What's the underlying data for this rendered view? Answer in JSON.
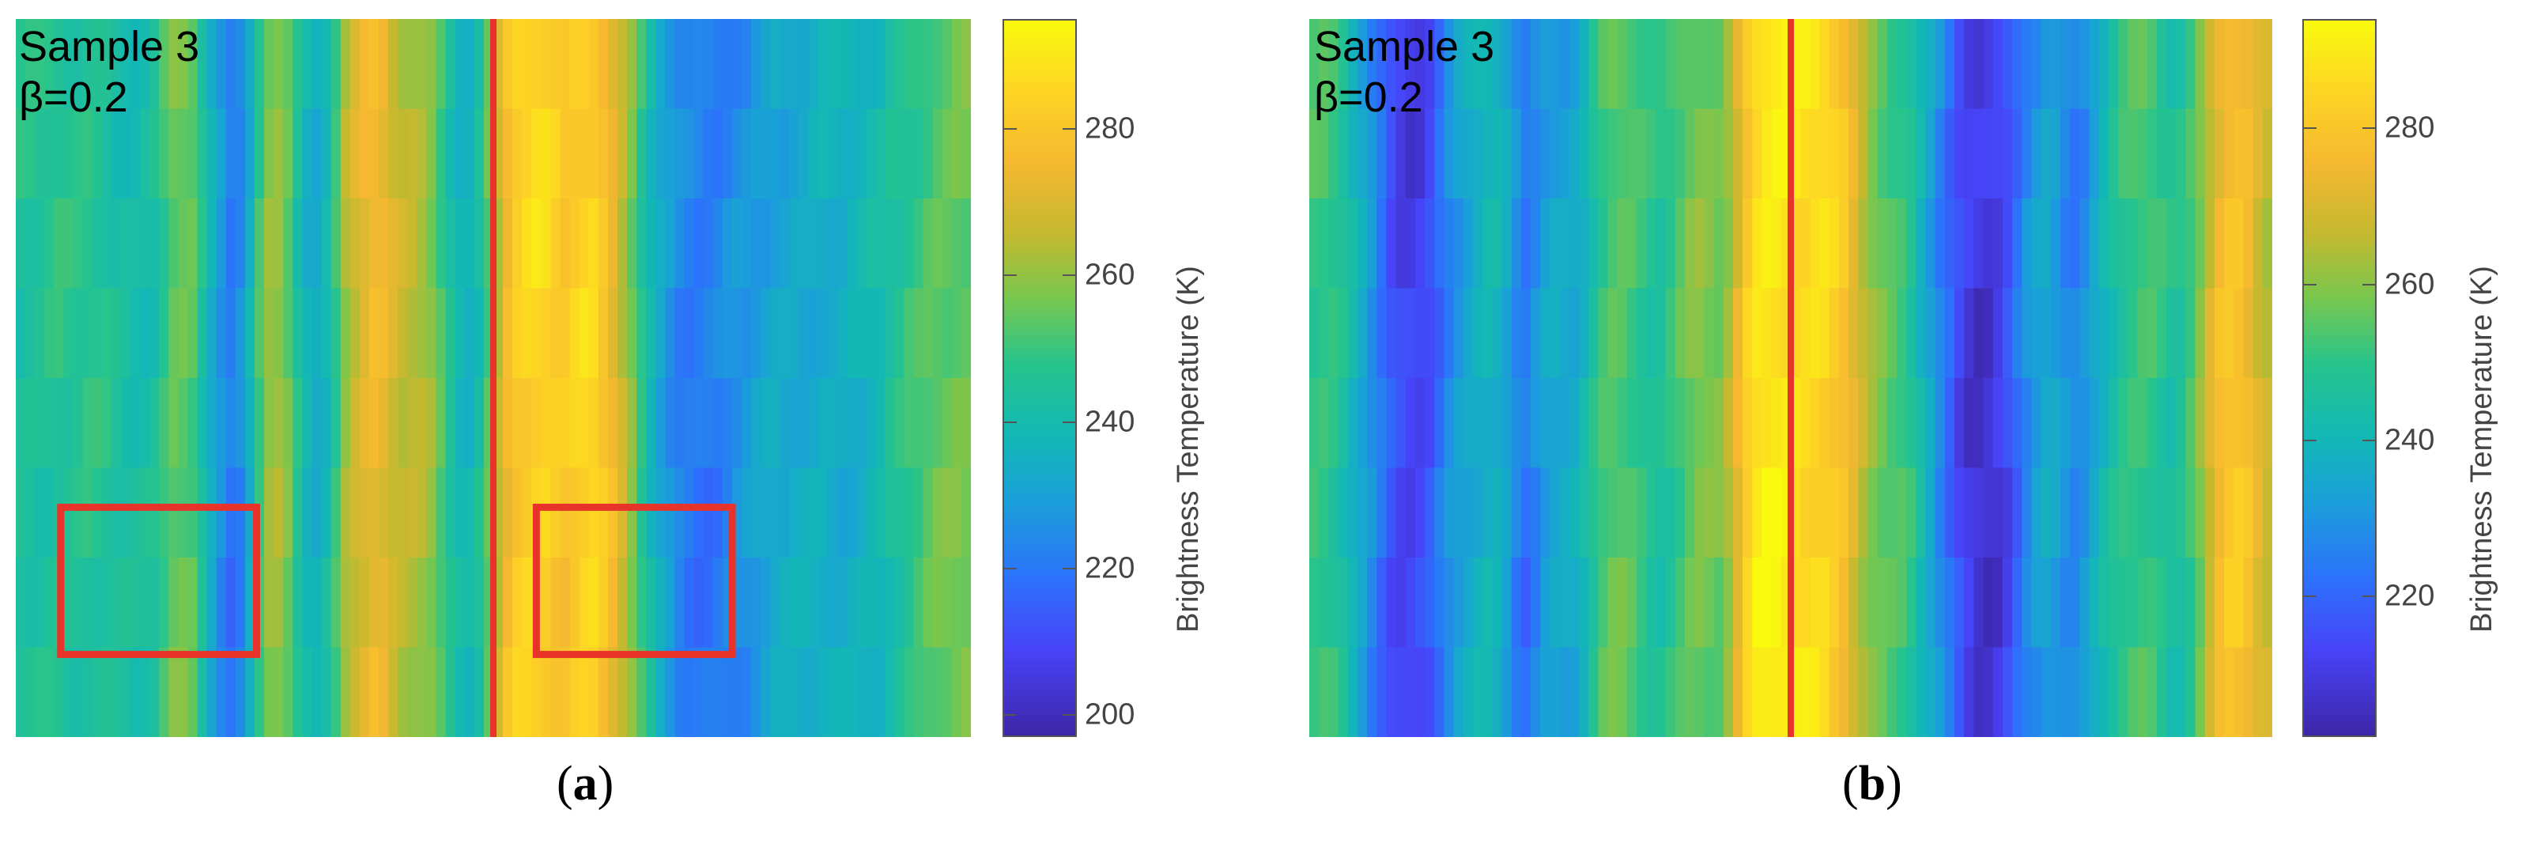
{
  "figure": {
    "colors": {
      "parula": [
        "#3e26a8",
        "#4743f8",
        "#2c72fb",
        "#1aa0d8",
        "#13b8b5",
        "#27c48c",
        "#76c74f",
        "#c3b92f",
        "#f5b830",
        "#fdd424",
        "#f9fb0e"
      ],
      "marker": "#e8332a"
    },
    "panels": [
      {
        "id": "a",
        "caption": "a",
        "caption_open": "(",
        "caption_close": ")",
        "sample_label": "Sample 3",
        "beta_label": "β=0.2",
        "chart_data": {
          "type": "heatmap",
          "colormap": "parula",
          "colorbar": {
            "title": "Brightness Temperature (K)",
            "range": [
              197,
              295
            ],
            "ticks": [
              200,
              220,
              240,
              260,
              280
            ]
          },
          "columns": [
            243,
            243,
            243,
            244,
            245,
            244,
            244,
            245,
            244,
            243,
            241,
            240,
            239,
            240,
            242,
            248,
            254,
            254,
            252,
            242,
            232,
            224,
            218,
            221,
            232,
            248,
            259,
            260,
            254,
            243,
            235,
            232,
            237,
            248,
            262,
            268,
            272,
            275,
            273,
            268,
            265,
            264,
            262,
            258,
            250,
            242,
            236,
            235,
            241,
            252,
            266,
            277,
            283,
            285,
            286,
            285,
            282,
            280,
            283,
            285,
            285,
            280,
            274,
            266,
            257,
            246,
            237,
            230,
            225,
            221,
            219,
            218,
            218,
            219,
            221,
            223,
            224,
            226,
            228,
            230,
            230,
            231,
            231,
            232,
            233,
            232,
            232,
            233,
            234,
            236,
            237,
            241,
            243,
            246,
            248,
            251,
            253,
            254,
            255,
            255
          ],
          "annotations": [
            "red vertical line at horizontal center",
            "red box at lower left of each half"
          ]
        }
      },
      {
        "id": "b",
        "caption": "b",
        "caption_open": "(",
        "caption_close": ")",
        "sample_label": "Sample 3",
        "beta_label": "β=0.2",
        "chart_data": {
          "type": "heatmap",
          "colormap": "parula",
          "colorbar": {
            "title": "Brightness Temperature (K)",
            "range": [
              202,
              294
            ],
            "ticks": [
              220,
              240,
              260,
              280
            ]
          },
          "columns": [
            250,
            250,
            248,
            244,
            238,
            232,
            226,
            220,
            214,
            211,
            210,
            211,
            214,
            220,
            226,
            230,
            233,
            236,
            238,
            237,
            232,
            225,
            221,
            225,
            230,
            232,
            232,
            233,
            238,
            245,
            251,
            254,
            254,
            252,
            249,
            246,
            245,
            248,
            252,
            256,
            258,
            257,
            256,
            262,
            272,
            283,
            289,
            291,
            291,
            290,
            288,
            287,
            287,
            286,
            283,
            279,
            272,
            265,
            259,
            255,
            252,
            250,
            246,
            239,
            232,
            225,
            219,
            213,
            209,
            207,
            207,
            209,
            213,
            219,
            225,
            229,
            232,
            230,
            226,
            224,
            227,
            233,
            239,
            244,
            248,
            250,
            251,
            250,
            247,
            244,
            245,
            250,
            258,
            268,
            276,
            280,
            280,
            277,
            271,
            267
          ],
          "annotations": [
            "red vertical line at horizontal center"
          ]
        }
      }
    ]
  }
}
